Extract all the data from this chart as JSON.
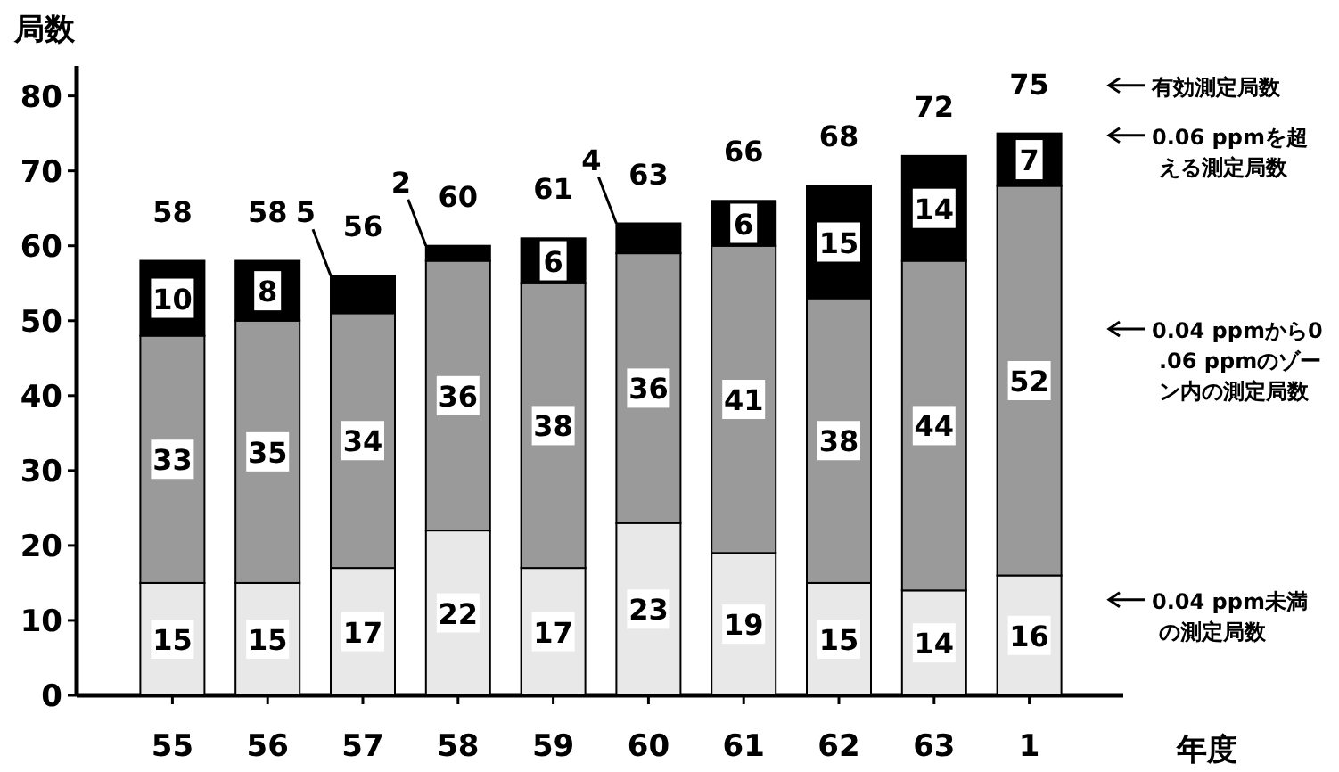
{
  "chart_data": {
    "type": "bar",
    "stacked": true,
    "xlabel": "年度",
    "ylabel": "局数",
    "categories": [
      "55",
      "56",
      "57",
      "58",
      "59",
      "60",
      "61",
      "62",
      "63",
      "1"
    ],
    "series": [
      {
        "name": "0.04 ppm未満の測定局数",
        "color": "#e8e8e8",
        "values": [
          15,
          15,
          17,
          22,
          17,
          23,
          19,
          15,
          14,
          16
        ]
      },
      {
        "name": "0.04 ppmから0.06 ppmのゾーン内の測定局数",
        "color": "#9a9a9a",
        "values": [
          33,
          35,
          34,
          36,
          38,
          36,
          41,
          38,
          44,
          52
        ]
      },
      {
        "name": "0.06 ppmを超える測定局数",
        "color": "#000000",
        "values": [
          10,
          8,
          5,
          2,
          6,
          4,
          6,
          15,
          14,
          7
        ]
      }
    ],
    "totals": [
      "58",
      "58",
      "56",
      "60",
      "61",
      "63",
      "66",
      "68",
      "72",
      "75"
    ],
    "annotations": [
      "有効測定局数"
    ],
    "ylim": [
      0,
      84
    ],
    "yticks": [
      0,
      10,
      20,
      30,
      40,
      50,
      60,
      70,
      80
    ],
    "data_labels": true,
    "grid": false,
    "legend": "right"
  }
}
